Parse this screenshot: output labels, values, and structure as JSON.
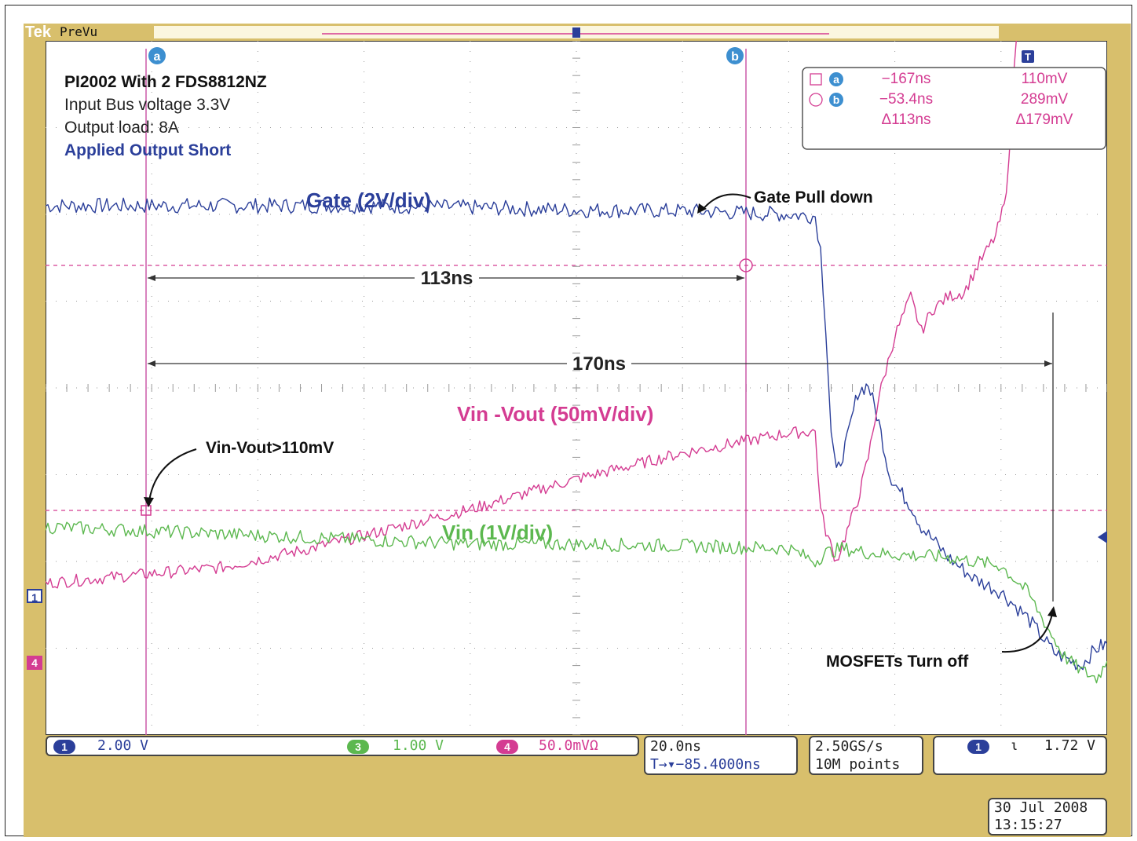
{
  "header": {
    "brand": "Tek",
    "mode": "PreVu"
  },
  "annotations": {
    "title": "PI2002 With 2 FDS8812NZ",
    "line2": "Input Bus voltage 3.3V",
    "line3": "Output load: 8A",
    "line4": "Applied Output Short",
    "gate_label": "Gate (2V/div)",
    "vin_vout_label": "Vin -Vout (50mV/div)",
    "vin_label": "Vin (1V/div)",
    "gate_pull_down": "Gate Pull down",
    "vin_vout_threshold": "Vin-Vout>110mV",
    "mosfets_off": "MOSFETs Turn off",
    "span_113": "113ns",
    "span_170": "170ns"
  },
  "cursor_readout": {
    "cursor_a_label": "a",
    "cursor_b_label": "b",
    "trigger_label": "T",
    "a_time": "−167ns",
    "a_value": "110mV",
    "b_time": "−53.4ns",
    "b_value": "289mV",
    "delta_time": "Δ113ns",
    "delta_value": "Δ179mV"
  },
  "channel_markers": {
    "ch1": "1",
    "ch4": "4"
  },
  "status_bar": {
    "ch1_num": "1",
    "ch1_scale": "2.00 V",
    "ch3_num": "3",
    "ch3_scale": "1.00 V",
    "ch4_num": "4",
    "ch4_scale": "50.0mVΩ",
    "timebase": "20.0ns",
    "trigger_pos": "T→▾−85.4000ns",
    "sample_rate": "2.50GS/s",
    "record_length": "10M points",
    "trig_ch": "1",
    "trig_slope": "ι",
    "trig_level": "1.72 V",
    "date": "30 Jul  2008",
    "time": "13:15:27"
  },
  "colors": {
    "gate": "#2b3f9a",
    "vin_vout": "#d43c92",
    "vin": "#5cb84f",
    "bezel": "#d8bf6c",
    "grid": "#9a9a9a",
    "cursor": "#cc5aa8"
  },
  "chart_data": {
    "type": "line",
    "xlabel": "",
    "ylabel": "",
    "xlim": [
      -200,
      0
    ],
    "ylim": [
      -4,
      4
    ],
    "x_unit": "ns",
    "y_unit": "div",
    "grid": true,
    "cursors": {
      "a_ns": -167,
      "b_ns": -53.4
    },
    "series": [
      {
        "name": "Gate (2V/div)",
        "color": "#2b3f9a",
        "x": [
          -200,
          -180,
          -160,
          -140,
          -120,
          -100,
          -80,
          -60,
          -55,
          -54,
          -53,
          -52,
          -51,
          -49,
          -47,
          -45,
          -43,
          -41,
          -39,
          -37,
          -35,
          -30,
          -25,
          -20,
          -15,
          -10,
          -5,
          -2,
          0
        ],
        "y": [
          2.1,
          2.1,
          2.1,
          2.1,
          2.08,
          2.05,
          2.04,
          2.0,
          1.98,
          1.6,
          0.7,
          -0.5,
          -1.0,
          -0.6,
          -0.05,
          0.04,
          -0.4,
          -1.0,
          -1.2,
          -1.35,
          -1.6,
          -1.95,
          -2.2,
          -2.35,
          -2.65,
          -3.05,
          -3.2,
          -3.0,
          -2.95
        ]
      },
      {
        "name": "Vin -Vout (50mV/div)",
        "color": "#d43c92",
        "x": [
          -200,
          -167,
          -150,
          -120,
          -100,
          -80,
          -60,
          -55,
          -54,
          -53,
          -51,
          -49,
          -47,
          -45,
          -43,
          -40,
          -37,
          -35,
          -33,
          -30,
          -27,
          -24,
          -21,
          -19,
          -18,
          -17
        ],
        "y": [
          -2.25,
          -2.07,
          -1.85,
          -1.4,
          -1.05,
          -0.75,
          -0.52,
          -0.5,
          -1.4,
          -1.65,
          -2.0,
          -1.65,
          -1.3,
          -0.8,
          -0.1,
          0.6,
          1.05,
          0.65,
          0.9,
          1.05,
          1.1,
          1.45,
          1.75,
          2.2,
          3.2,
          4.1
        ]
      },
      {
        "name": "Vin (1V/div)",
        "color": "#5cb84f",
        "x": [
          -200,
          -180,
          -160,
          -140,
          -120,
          -100,
          -80,
          -60,
          -55,
          -53,
          -50,
          -45,
          -40,
          -30,
          -20,
          -15,
          -10,
          -8,
          -5,
          -2,
          0
        ],
        "y": [
          -1.6,
          -1.65,
          -1.7,
          -1.75,
          -1.8,
          -1.8,
          -1.82,
          -1.85,
          -2.0,
          -1.9,
          -1.85,
          -1.9,
          -1.92,
          -1.95,
          -2.05,
          -2.35,
          -2.9,
          -3.1,
          -3.25,
          -3.35,
          -3.15
        ]
      }
    ]
  }
}
